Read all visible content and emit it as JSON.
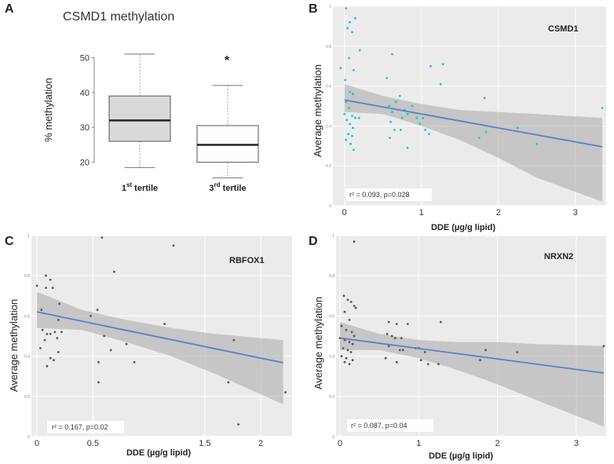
{
  "chart_data": [
    {
      "panel": "A",
      "type": "box",
      "title": "CSMD1 methylation",
      "ylabel": "% methylation",
      "ylim": [
        17,
        53
      ],
      "yticks": [
        20,
        30,
        40,
        50
      ],
      "categories": [
        "1st tertile",
        "3rd tertile"
      ],
      "category_main": [
        "1",
        "3"
      ],
      "category_sup": [
        "st",
        "rd"
      ],
      "category_suffix": " tertile",
      "boxes": [
        {
          "min": 18.5,
          "q1": 26,
          "median": 32,
          "q3": 39,
          "max": 51
        },
        {
          "min": 15.5,
          "q1": 20,
          "median": 25,
          "q3": 30.5,
          "max": 42
        }
      ],
      "annotation": "*"
    },
    {
      "panel": "B",
      "type": "scatter",
      "gene": "CSMD1",
      "xlabel": "DDE (µg/g lipid)",
      "ylabel": "Average methylation",
      "xlim": [
        -0.15,
        3.4
      ],
      "ylim": [
        0,
        1
      ],
      "xticks": [
        0,
        1,
        2,
        3
      ],
      "xtick_labels": [
        "0",
        "1",
        "2",
        "3"
      ],
      "yticks": [
        0,
        0.2,
        0.4,
        0.6,
        0.8,
        1
      ],
      "ytick_labels": [
        "0",
        "0.2",
        "0.4",
        "0.6",
        "0.8",
        "1"
      ],
      "point_color": "#19c3cc",
      "fit": {
        "intercept": 0.53,
        "slope": -0.07
      },
      "band": [
        {
          "x": 0,
          "lo": 0.47,
          "hi": 0.61
        },
        {
          "x": 0.5,
          "lo": 0.46,
          "hi": 0.55
        },
        {
          "x": 1,
          "lo": 0.4,
          "hi": 0.51
        },
        {
          "x": 1.5,
          "lo": 0.33,
          "hi": 0.48
        },
        {
          "x": 2,
          "lo": 0.24,
          "hi": 0.47
        },
        {
          "x": 2.5,
          "lo": 0.14,
          "hi": 0.46
        },
        {
          "x": 3.35,
          "lo": 0.02,
          "hi": 0.44
        }
      ],
      "points": [
        [
          0.02,
          0.99
        ],
        [
          0.07,
          0.92
        ],
        [
          0.14,
          0.94
        ],
        [
          0.04,
          0.89
        ],
        [
          0.1,
          0.87
        ],
        [
          0.2,
          0.78
        ],
        [
          0.06,
          0.74
        ],
        [
          -0.05,
          0.69
        ],
        [
          0.12,
          0.68
        ],
        [
          0.01,
          0.63
        ],
        [
          0.07,
          0.57
        ],
        [
          0.11,
          0.56
        ],
        [
          0.02,
          0.52
        ],
        [
          0.06,
          0.49
        ],
        [
          0.0,
          0.46
        ],
        [
          0.1,
          0.45
        ],
        [
          0.14,
          0.44
        ],
        [
          0.19,
          0.44
        ],
        [
          0.03,
          0.43
        ],
        [
          0.07,
          0.41
        ],
        [
          0.11,
          0.39
        ],
        [
          0.05,
          0.36
        ],
        [
          0.1,
          0.35
        ],
        [
          0.02,
          0.33
        ],
        [
          0.08,
          0.31
        ],
        [
          0.12,
          0.28
        ],
        [
          0.62,
          0.76
        ],
        [
          0.55,
          0.64
        ],
        [
          0.72,
          0.55
        ],
        [
          0.67,
          0.52
        ],
        [
          0.58,
          0.5
        ],
        [
          0.62,
          0.47
        ],
        [
          0.78,
          0.48
        ],
        [
          0.88,
          0.5
        ],
        [
          0.82,
          0.46
        ],
        [
          0.6,
          0.42
        ],
        [
          0.75,
          0.44
        ],
        [
          0.94,
          0.44
        ],
        [
          1.02,
          0.44
        ],
        [
          0.98,
          0.41
        ],
        [
          0.65,
          0.38
        ],
        [
          0.73,
          0.38
        ],
        [
          1.05,
          0.38
        ],
        [
          1.1,
          0.36
        ],
        [
          0.59,
          0.34
        ],
        [
          0.82,
          0.29
        ],
        [
          1.12,
          0.7
        ],
        [
          1.28,
          0.71
        ],
        [
          1.25,
          0.61
        ],
        [
          1.82,
          0.54
        ],
        [
          1.84,
          0.37
        ],
        [
          1.75,
          0.34
        ],
        [
          2.25,
          0.39
        ],
        [
          2.5,
          0.31
        ],
        [
          3.35,
          0.49
        ]
      ],
      "stat_text": "r² = 0.093, p=0.028"
    },
    {
      "panel": "C",
      "type": "scatter",
      "gene": "RBFOX1",
      "xlabel": "DDE (µg/g lipid)",
      "ylabel": "Average methylation",
      "xlim": [
        -0.05,
        2.28
      ],
      "ylim": [
        0,
        1
      ],
      "xticks": [
        0,
        0.5,
        1.5,
        2
      ],
      "xtick_labels": [
        "0",
        "0.5",
        "1.5",
        "2"
      ],
      "yticks": [
        0,
        0.2,
        0.4,
        0.6,
        0.8,
        1
      ],
      "ytick_labels": [
        "0",
        "0.2",
        "0.4",
        "0.6",
        "0.8",
        "1"
      ],
      "point_color": "#555555",
      "fit": {
        "intercept": 0.62,
        "slope": -0.115
      },
      "band": [
        {
          "x": 0,
          "lo": 0.54,
          "hi": 0.72
        },
        {
          "x": 0.4,
          "lo": 0.53,
          "hi": 0.63
        },
        {
          "x": 0.8,
          "lo": 0.47,
          "hi": 0.58
        },
        {
          "x": 1.2,
          "lo": 0.4,
          "hi": 0.54
        },
        {
          "x": 1.6,
          "lo": 0.31,
          "hi": 0.51
        },
        {
          "x": 2.2,
          "lo": 0.16,
          "hi": 0.48
        }
      ],
      "points": [
        [
          0.08,
          0.8
        ],
        [
          0.12,
          0.78
        ],
        [
          0.0,
          0.75
        ],
        [
          0.08,
          0.74
        ],
        [
          0.14,
          0.74
        ],
        [
          0.04,
          0.63
        ],
        [
          0.2,
          0.66
        ],
        [
          0.19,
          0.58
        ],
        [
          0.05,
          0.53
        ],
        [
          0.09,
          0.51
        ],
        [
          0.12,
          0.51
        ],
        [
          0.16,
          0.52
        ],
        [
          0.22,
          0.52
        ],
        [
          0.07,
          0.48
        ],
        [
          0.18,
          0.49
        ],
        [
          0.03,
          0.44
        ],
        [
          0.19,
          0.42
        ],
        [
          0.12,
          0.39
        ],
        [
          0.15,
          0.38
        ],
        [
          0.09,
          0.35
        ],
        [
          0.58,
          0.99
        ],
        [
          0.69,
          0.82
        ],
        [
          0.54,
          0.63
        ],
        [
          0.48,
          0.6
        ],
        [
          0.6,
          0.5
        ],
        [
          0.66,
          0.43
        ],
        [
          0.8,
          0.46
        ],
        [
          0.55,
          0.37
        ],
        [
          0.87,
          0.37
        ],
        [
          0.55,
          0.27
        ],
        [
          1.22,
          0.95
        ],
        [
          1.14,
          0.56
        ],
        [
          1.76,
          0.48
        ],
        [
          1.71,
          0.27
        ],
        [
          1.8,
          0.06
        ],
        [
          2.22,
          0.22
        ]
      ],
      "stat_text": "r² = 0.167, p=0.02"
    },
    {
      "panel": "D",
      "type": "scatter",
      "gene": "NRXN2",
      "xlabel": "DDE (µg/g lipid)",
      "ylabel": "Average methylation",
      "xlim": [
        -0.05,
        3.38
      ],
      "ylim": [
        0,
        1
      ],
      "xticks": [
        0,
        1,
        2,
        3
      ],
      "xtick_labels": [
        "0",
        "1",
        "2",
        "3"
      ],
      "yticks": [
        0,
        0.2,
        0.4,
        0.6,
        0.8,
        1
      ],
      "ytick_labels": [
        "0",
        "0.2",
        "0.4",
        "0.6",
        "0.8",
        "1"
      ],
      "point_color": "#555555",
      "fit": {
        "intercept": 0.49,
        "slope": -0.052
      },
      "band": [
        {
          "x": 0,
          "lo": 0.43,
          "hi": 0.57
        },
        {
          "x": 0.5,
          "lo": 0.43,
          "hi": 0.51
        },
        {
          "x": 1,
          "lo": 0.39,
          "hi": 0.48
        },
        {
          "x": 1.5,
          "lo": 0.33,
          "hi": 0.47
        },
        {
          "x": 2,
          "lo": 0.26,
          "hi": 0.47
        },
        {
          "x": 2.5,
          "lo": 0.18,
          "hi": 0.46
        },
        {
          "x": 3.35,
          "lo": 0.05,
          "hi": 0.45
        }
      ],
      "points": [
        [
          0.18,
          0.97
        ],
        [
          0.05,
          0.7
        ],
        [
          0.1,
          0.68
        ],
        [
          0.14,
          0.67
        ],
        [
          0.18,
          0.65
        ],
        [
          0.2,
          0.64
        ],
        [
          0.06,
          0.62
        ],
        [
          0.12,
          0.58
        ],
        [
          0.02,
          0.55
        ],
        [
          0.08,
          0.53
        ],
        [
          0.15,
          0.52
        ],
        [
          0.18,
          0.5
        ],
        [
          0.0,
          0.49
        ],
        [
          0.06,
          0.48
        ],
        [
          0.12,
          0.47
        ],
        [
          0.16,
          0.46
        ],
        [
          0.04,
          0.44
        ],
        [
          0.1,
          0.43
        ],
        [
          0.14,
          0.42
        ],
        [
          0.02,
          0.4
        ],
        [
          0.08,
          0.39
        ],
        [
          0.16,
          0.38
        ],
        [
          0.06,
          0.37
        ],
        [
          0.12,
          0.36
        ],
        [
          0.62,
          0.57
        ],
        [
          0.6,
          0.51
        ],
        [
          0.72,
          0.56
        ],
        [
          0.86,
          0.56
        ],
        [
          0.66,
          0.5
        ],
        [
          0.7,
          0.49
        ],
        [
          0.78,
          0.49
        ],
        [
          0.62,
          0.45
        ],
        [
          0.76,
          0.43
        ],
        [
          0.8,
          0.43
        ],
        [
          0.96,
          0.44
        ],
        [
          1.0,
          0.44
        ],
        [
          1.08,
          0.42
        ],
        [
          0.58,
          0.39
        ],
        [
          0.72,
          0.37
        ],
        [
          1.03,
          0.38
        ],
        [
          1.12,
          0.36
        ],
        [
          1.25,
          0.36
        ],
        [
          1.28,
          0.57
        ],
        [
          1.85,
          0.43
        ],
        [
          1.78,
          0.38
        ],
        [
          2.25,
          0.42
        ],
        [
          3.35,
          0.45
        ]
      ],
      "stat_text": "r² = 0.087, p=0.04"
    }
  ],
  "panels": {
    "A": {
      "letter": "A"
    },
    "B": {
      "letter": "B"
    },
    "C": {
      "letter": "C"
    },
    "D": {
      "letter": "D"
    }
  }
}
